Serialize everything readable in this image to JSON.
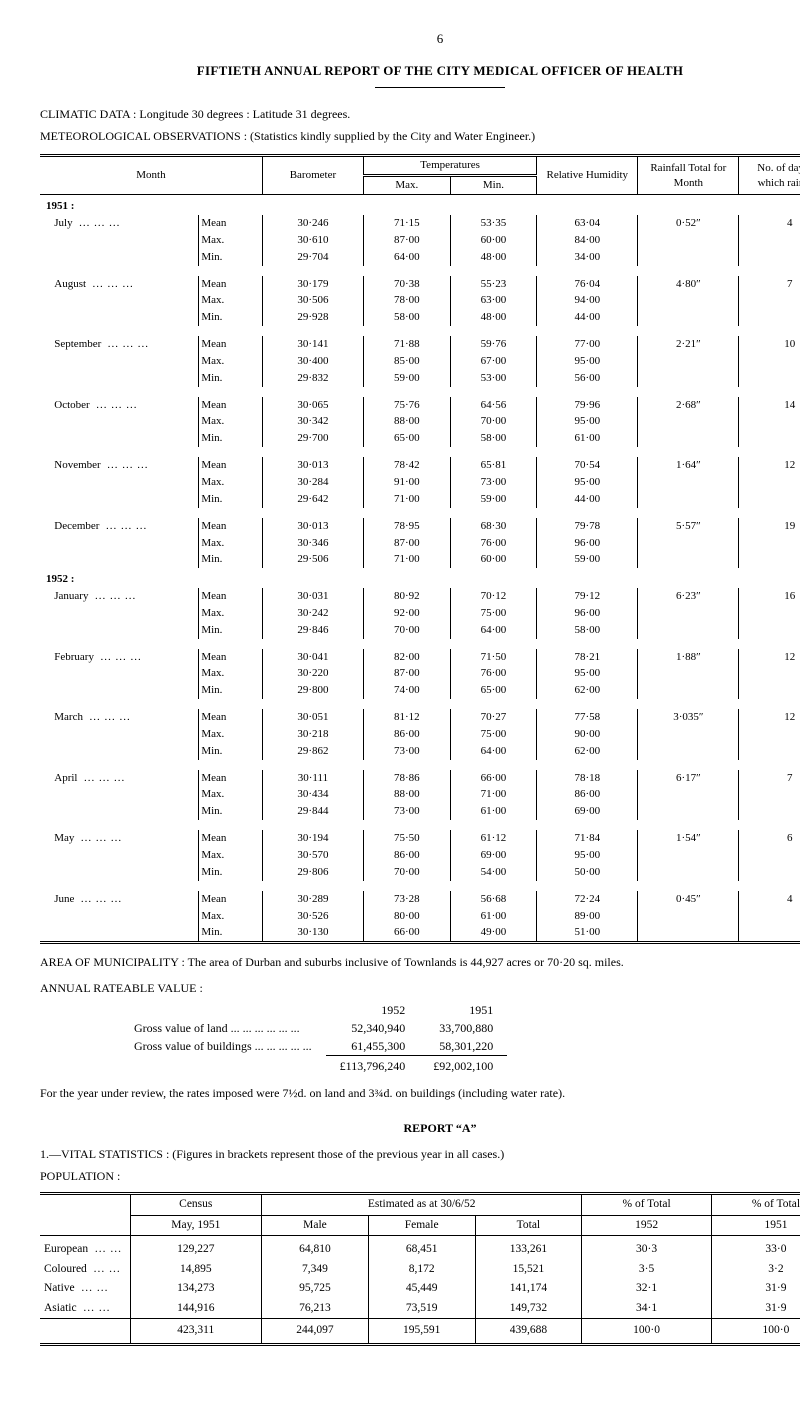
{
  "page_number": "6",
  "title": "FIFTIETH ANNUAL REPORT OF THE CITY MEDICAL OFFICER OF HEALTH",
  "climatic_heading": "CLIMATIC DATA :  Longitude 30 degrees :  Latitude 31 degrees.",
  "meteo_heading": "METEOROLOGICAL OBSERVATIONS :  (Statistics kindly supplied by the City and Water Engineer.)",
  "climatic_table": {
    "headers": {
      "month": "Month",
      "barometer": "Barometer",
      "temperatures": "Temperatures",
      "max": "Max.",
      "min": "Min.",
      "humidity": "Relative Humidity",
      "rainfall": "Rainfall Total for Month",
      "days": "No. of days on which rain fell"
    },
    "year1": "1951 :",
    "year2": "1952 :",
    "stat_labels": [
      "Mean",
      "Max.",
      "Min."
    ],
    "months": [
      {
        "name": "July",
        "group": 1,
        "rows": [
          {
            "bar": "30·246",
            "max": "71·15",
            "min": "53·35",
            "hum": "63·04",
            "rain": "0·52″",
            "days": "4"
          },
          {
            "bar": "30·610",
            "max": "87·00",
            "min": "60·00",
            "hum": "84·00",
            "rain": "",
            "days": ""
          },
          {
            "bar": "29·704",
            "max": "64·00",
            "min": "48·00",
            "hum": "34·00",
            "rain": "",
            "days": ""
          }
        ]
      },
      {
        "name": "August",
        "group": 1,
        "rows": [
          {
            "bar": "30·179",
            "max": "70·38",
            "min": "55·23",
            "hum": "76·04",
            "rain": "4·80″",
            "days": "7"
          },
          {
            "bar": "30·506",
            "max": "78·00",
            "min": "63·00",
            "hum": "94·00",
            "rain": "",
            "days": ""
          },
          {
            "bar": "29·928",
            "max": "58·00",
            "min": "48·00",
            "hum": "44·00",
            "rain": "",
            "days": ""
          }
        ]
      },
      {
        "name": "September",
        "group": 1,
        "rows": [
          {
            "bar": "30·141",
            "max": "71·88",
            "min": "59·76",
            "hum": "77·00",
            "rain": "2·21″",
            "days": "10"
          },
          {
            "bar": "30·400",
            "max": "85·00",
            "min": "67·00",
            "hum": "95·00",
            "rain": "",
            "days": ""
          },
          {
            "bar": "29·832",
            "max": "59·00",
            "min": "53·00",
            "hum": "56·00",
            "rain": "",
            "days": ""
          }
        ]
      },
      {
        "name": "October",
        "group": 1,
        "rows": [
          {
            "bar": "30·065",
            "max": "75·76",
            "min": "64·56",
            "hum": "79·96",
            "rain": "2·68″",
            "days": "14"
          },
          {
            "bar": "30·342",
            "max": "88·00",
            "min": "70·00",
            "hum": "95·00",
            "rain": "",
            "days": ""
          },
          {
            "bar": "29·700",
            "max": "65·00",
            "min": "58·00",
            "hum": "61·00",
            "rain": "",
            "days": ""
          }
        ]
      },
      {
        "name": "November",
        "group": 1,
        "rows": [
          {
            "bar": "30·013",
            "max": "78·42",
            "min": "65·81",
            "hum": "70·54",
            "rain": "1·64″",
            "days": "12"
          },
          {
            "bar": "30·284",
            "max": "91·00",
            "min": "73·00",
            "hum": "95·00",
            "rain": "",
            "days": ""
          },
          {
            "bar": "29·642",
            "max": "71·00",
            "min": "59·00",
            "hum": "44·00",
            "rain": "",
            "days": ""
          }
        ]
      },
      {
        "name": "December",
        "group": 1,
        "rows": [
          {
            "bar": "30·013",
            "max": "78·95",
            "min": "68·30",
            "hum": "79·78",
            "rain": "5·57″",
            "days": "19"
          },
          {
            "bar": "30·346",
            "max": "87·00",
            "min": "76·00",
            "hum": "96·00",
            "rain": "",
            "days": ""
          },
          {
            "bar": "29·506",
            "max": "71·00",
            "min": "60·00",
            "hum": "59·00",
            "rain": "",
            "days": ""
          }
        ]
      },
      {
        "name": "January",
        "group": 2,
        "rows": [
          {
            "bar": "30·031",
            "max": "80·92",
            "min": "70·12",
            "hum": "79·12",
            "rain": "6·23″",
            "days": "16"
          },
          {
            "bar": "30·242",
            "max": "92·00",
            "min": "75·00",
            "hum": "96·00",
            "rain": "",
            "days": ""
          },
          {
            "bar": "29·846",
            "max": "70·00",
            "min": "64·00",
            "hum": "58·00",
            "rain": "",
            "days": ""
          }
        ]
      },
      {
        "name": "February",
        "group": 2,
        "rows": [
          {
            "bar": "30·041",
            "max": "82·00",
            "min": "71·50",
            "hum": "78·21",
            "rain": "1·88″",
            "days": "12"
          },
          {
            "bar": "30·220",
            "max": "87·00",
            "min": "76·00",
            "hum": "95·00",
            "rain": "",
            "days": ""
          },
          {
            "bar": "29·800",
            "max": "74·00",
            "min": "65·00",
            "hum": "62·00",
            "rain": "",
            "days": ""
          }
        ]
      },
      {
        "name": "March",
        "group": 2,
        "rows": [
          {
            "bar": "30·051",
            "max": "81·12",
            "min": "70·27",
            "hum": "77·58",
            "rain": "3·035″",
            "days": "12"
          },
          {
            "bar": "30·218",
            "max": "86·00",
            "min": "75·00",
            "hum": "90·00",
            "rain": "",
            "days": ""
          },
          {
            "bar": "29·862",
            "max": "73·00",
            "min": "64·00",
            "hum": "62·00",
            "rain": "",
            "days": ""
          }
        ]
      },
      {
        "name": "April",
        "group": 2,
        "rows": [
          {
            "bar": "30·111",
            "max": "78·86",
            "min": "66·00",
            "hum": "78·18",
            "rain": "6·17″",
            "days": "7"
          },
          {
            "bar": "30·434",
            "max": "88·00",
            "min": "71·00",
            "hum": "86·00",
            "rain": "",
            "days": ""
          },
          {
            "bar": "29·844",
            "max": "73·00",
            "min": "61·00",
            "hum": "69·00",
            "rain": "",
            "days": ""
          }
        ]
      },
      {
        "name": "May",
        "group": 2,
        "rows": [
          {
            "bar": "30·194",
            "max": "75·50",
            "min": "61·12",
            "hum": "71·84",
            "rain": "1·54″",
            "days": "6"
          },
          {
            "bar": "30·570",
            "max": "86·00",
            "min": "69·00",
            "hum": "95·00",
            "rain": "",
            "days": ""
          },
          {
            "bar": "29·806",
            "max": "70·00",
            "min": "54·00",
            "hum": "50·00",
            "rain": "",
            "days": ""
          }
        ]
      },
      {
        "name": "June",
        "group": 2,
        "rows": [
          {
            "bar": "30·289",
            "max": "73·28",
            "min": "56·68",
            "hum": "72·24",
            "rain": "0·45″",
            "days": "4"
          },
          {
            "bar": "30·526",
            "max": "80·00",
            "min": "61·00",
            "hum": "89·00",
            "rain": "",
            "days": ""
          },
          {
            "bar": "30·130",
            "max": "66·00",
            "min": "49·00",
            "hum": "51·00",
            "rain": "",
            "days": ""
          }
        ]
      }
    ]
  },
  "area_text": "AREA OF MUNICIPALITY : The area of Durban and suburbs inclusive of Townlands is 44,927 acres or 70·20 sq. miles.",
  "rateable_heading": "ANNUAL RATEABLE VALUE :",
  "gross": {
    "col_1952": "1952",
    "col_1951": "1951",
    "land_label": "Gross value of land ...  ...  ...  ...  ...  ...",
    "land_1952": "52,340,940",
    "land_1951": "33,700,880",
    "bld_label": "Gross value of buildings ...  ...  ...  ...  ...",
    "bld_1952": "61,455,300",
    "bld_1951": "58,301,220",
    "total_1952": "£113,796,240",
    "total_1951": "£92,002,100"
  },
  "rates_note": "For the year under review, the rates imposed were 7½d. on land and 3¾d. on buildings (including water rate).",
  "report_a": "REPORT  “A”",
  "vital_heading": "1.—VITAL STATISTICS :  (Figures in brackets represent those of the previous year in all cases.)",
  "population_heading": "POPULATION :",
  "population_table": {
    "headers": {
      "census": "Census",
      "census_sub": "May, 1951",
      "estimated": "Estimated as at 30/6/52",
      "male": "Male",
      "female": "Female",
      "total": "Total",
      "pct_1952_top": "% of Total",
      "pct_1952_sub": "1952",
      "pct_1951_top": "% of Total",
      "pct_1951_sub": "1951"
    },
    "rows": [
      {
        "cat": "European",
        "census": "129,227",
        "male": "64,810",
        "female": "68,451",
        "total": "133,261",
        "p52": "30·3",
        "p51": "33·0"
      },
      {
        "cat": "Coloured",
        "census": "14,895",
        "male": "7,349",
        "female": "8,172",
        "total": "15,521",
        "p52": "3·5",
        "p51": "3·2"
      },
      {
        "cat": "Native",
        "census": "134,273",
        "male": "95,725",
        "female": "45,449",
        "total": "141,174",
        "p52": "32·1",
        "p51": "31·9"
      },
      {
        "cat": "Asiatic",
        "census": "144,916",
        "male": "76,213",
        "female": "73,519",
        "total": "149,732",
        "p52": "34·1",
        "p51": "31·9"
      }
    ],
    "totals": {
      "census": "423,311",
      "male": "244,097",
      "female": "195,591",
      "total": "439,688",
      "p52": "100·0",
      "p51": "100·0"
    }
  }
}
